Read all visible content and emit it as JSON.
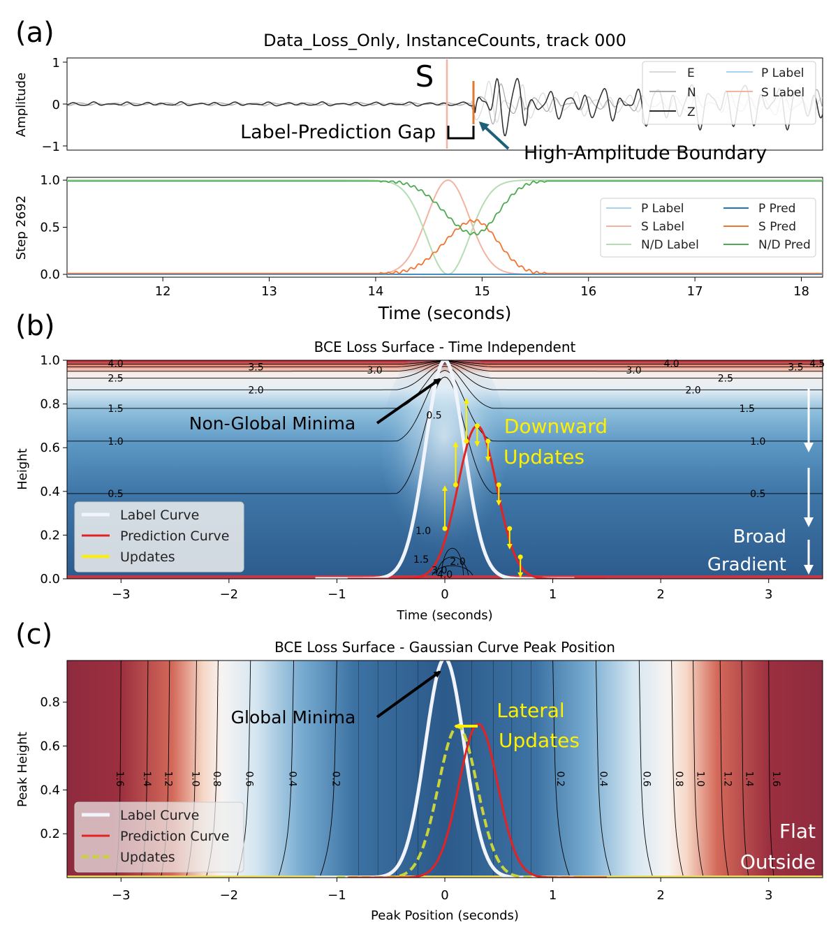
{
  "panel_letters": [
    "(a)",
    "(b)",
    "(c)"
  ],
  "colors": {
    "e": "#d9d9d9",
    "n": "#a9a9a9",
    "z": "#2b2b2b",
    "p_label": "#a6d3ef",
    "s_label": "#f4b3a0",
    "nd_label": "#b5dcb2",
    "p_pred": "#1f77b4",
    "s_pred": "#f07533",
    "nd_pred": "#4eaa52",
    "label_curve": "#f2f4fb",
    "prediction_curve": "#e52222",
    "updates": "#ffef00",
    "annotation_black": "#000000",
    "annotation_yellow": "#ffef00",
    "annotation_white": "#ffffff",
    "arrow_teal": "#1e6079"
  },
  "chart_data": [
    {
      "id": "a_top",
      "type": "line",
      "title": "Data_Loss_Only, InstanceCounts, track 000",
      "ylabel": "Amplitude",
      "xlim": [
        11.1,
        18.2
      ],
      "ylim": [
        -1.1,
        1.1
      ],
      "yticks": [
        "1",
        "0",
        "−1"
      ],
      "ytick_values": [
        1,
        0,
        -1
      ],
      "legend": {
        "placement": "top-right",
        "entries": [
          "E",
          "N",
          "Z",
          "P Label",
          "S Label"
        ]
      },
      "series": [
        {
          "name": "E",
          "description": "light gray waveform"
        },
        {
          "name": "N",
          "description": "gray waveform"
        },
        {
          "name": "Z",
          "description": "dark waveform"
        },
        {
          "name": "S Label",
          "x": 14.68
        }
      ],
      "pred_marker_x": 14.93,
      "annotations": {
        "s_marker": "S",
        "gap": "Label-Prediction Gap",
        "boundary": "High-Amplitude Boundary"
      }
    },
    {
      "id": "a_bottom",
      "type": "line",
      "ylabel": "Step 2692",
      "xlabel": "Time (seconds)",
      "xlim": [
        11.1,
        18.2
      ],
      "ylim": [
        -0.03,
        1.03
      ],
      "xticks": [
        12,
        13,
        14,
        15,
        16,
        17,
        18
      ],
      "yticks": [
        "0.0",
        "0.5",
        "1.0"
      ],
      "ytick_values": [
        0,
        0.5,
        1.0
      ],
      "legend": {
        "placement": "right",
        "entries": [
          "P Label",
          "S Label",
          "N/D Label",
          "P Pred",
          "S Pred",
          "N/D Pred"
        ]
      },
      "series": [
        {
          "name": "P Label",
          "values": "zero"
        },
        {
          "name": "S Label",
          "center": 14.68,
          "sigma": 0.2,
          "peak": 1.0
        },
        {
          "name": "N/D Label",
          "equals": "1 - S Label"
        },
        {
          "name": "P Pred",
          "values": "approx 0.0"
        },
        {
          "name": "S Pred",
          "peak_x": 14.93,
          "peak": 0.57,
          "range": [
            14.0,
            15.6
          ]
        },
        {
          "name": "N/D Pred",
          "equals": "1 - S Pred"
        }
      ]
    },
    {
      "id": "b",
      "type": "heatmap",
      "title": "BCE Loss Surface - Time Independent",
      "xlabel": "Time (seconds)",
      "ylabel": "Height",
      "xlim": [
        -3.5,
        3.5
      ],
      "ylim": [
        0.0,
        1.0
      ],
      "xticks": [
        "−3",
        "−2",
        "−1",
        "0",
        "1",
        "2",
        "3"
      ],
      "xtick_values": [
        -3,
        -2,
        -1,
        0,
        1,
        2,
        3
      ],
      "yticks": [
        "0.0",
        "0.2",
        "0.4",
        "0.6",
        "0.8",
        "1.0"
      ],
      "ytick_values": [
        0,
        0.2,
        0.4,
        0.6,
        0.8,
        1.0
      ],
      "contour_labels": [
        "0.5",
        "1.0",
        "1.5",
        "2.0",
        "2.5",
        "3.0",
        "3.5",
        "4.0",
        "4.5"
      ],
      "label_curve": {
        "center": 0.0,
        "peak": 1.0,
        "sigma": 0.18
      },
      "prediction_curve": {
        "center": 0.3,
        "peak": 0.7,
        "sigma": 0.18
      },
      "update_points": [
        {
          "x": 0.0,
          "y": 0.23,
          "dir": "up"
        },
        {
          "x": 0.1,
          "y": 0.43,
          "dir": "up"
        },
        {
          "x": 0.2,
          "y": 0.63,
          "dir": "up"
        },
        {
          "x": 0.3,
          "y": 0.7,
          "dir": "down"
        },
        {
          "x": 0.4,
          "y": 0.63,
          "dir": "down"
        },
        {
          "x": 0.5,
          "y": 0.43,
          "dir": "down"
        },
        {
          "x": 0.6,
          "y": 0.23,
          "dir": "down"
        },
        {
          "x": 0.7,
          "y": 0.1,
          "dir": "down"
        }
      ],
      "legend": {
        "placement": "lower-left",
        "entries": [
          "Label Curve",
          "Prediction Curve",
          "Updates"
        ]
      },
      "annotations": {
        "minima": "Non-Global Minima",
        "downward_1": "Downward",
        "downward_2": "Updates",
        "broad_1": "Broad",
        "broad_2": "Gradient"
      }
    },
    {
      "id": "c",
      "type": "heatmap",
      "title": "BCE Loss Surface - Gaussian Curve Peak Position",
      "xlabel": "Peak Position (seconds)",
      "ylabel": "Peak Height",
      "xlim": [
        -3.5,
        3.5
      ],
      "ylim": [
        0.0,
        1.0
      ],
      "xticks": [
        "−3",
        "−2",
        "−1",
        "0",
        "1",
        "2",
        "3"
      ],
      "xtick_values": [
        -3,
        -2,
        -1,
        0,
        1,
        2,
        3
      ],
      "yticks": [
        "0.2",
        "0.4",
        "0.6",
        "0.8"
      ],
      "ytick_values": [
        0.2,
        0.4,
        0.6,
        0.8
      ],
      "contour_values": [
        0.2,
        0.4,
        0.6,
        0.8,
        1.0,
        1.2,
        1.4,
        1.6
      ],
      "contour_labels": [
        "0.2",
        "0.4",
        "0.6",
        "0.8",
        "1.0",
        "1.2",
        "1.4",
        "1.6"
      ],
      "contour_positions": [
        1.0,
        1.4,
        1.8,
        2.1,
        2.3,
        2.55,
        2.75,
        3.0
      ],
      "label_curve": {
        "center": 0.0,
        "peak": 1.0,
        "sigma": 0.18
      },
      "prediction_curve": {
        "center": 0.31,
        "peak": 0.7,
        "sigma": 0.18
      },
      "update_curve": {
        "center": 0.12,
        "peak": 0.69,
        "sigma": 0.18
      },
      "legend": {
        "placement": "lower-left",
        "entries": [
          "Label Curve",
          "Prediction Curve",
          "Updates"
        ]
      },
      "annotations": {
        "minima": "Global Minima",
        "lateral_1": "Lateral",
        "lateral_2": "Updates",
        "flat_1": "Flat",
        "flat_2": "Outside"
      }
    }
  ]
}
